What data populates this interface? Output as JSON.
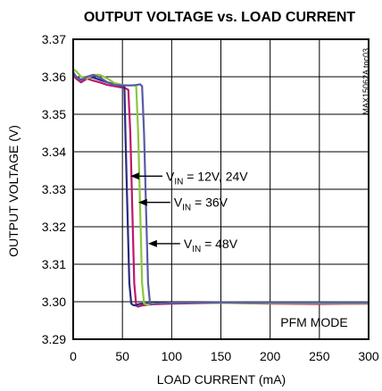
{
  "chart_data": {
    "type": "line",
    "title": "OUTPUT VOLTAGE vs. LOAD CURRENT",
    "xlabel": "LOAD CURRENT (mA)",
    "ylabel": "OUTPUT  VOLTAGE (V)",
    "xlim": [
      0,
      300
    ],
    "ylim": [
      3.29,
      3.37
    ],
    "x_ticks": [
      "0",
      "50",
      "100",
      "150",
      "200",
      "250",
      "300"
    ],
    "y_ticks": [
      "3.29",
      "3.30",
      "3.31",
      "3.32",
      "3.33",
      "3.34",
      "3.35",
      "3.36",
      "3.37"
    ],
    "x_tick_values": [
      0,
      50,
      100,
      150,
      200,
      250,
      300
    ],
    "y_tick_values": [
      3.29,
      3.3,
      3.31,
      3.32,
      3.33,
      3.34,
      3.35,
      3.36,
      3.37
    ],
    "grid": true,
    "corner_code": "MAX15062A toc03",
    "mode_label": "PFM MODE",
    "series": [
      {
        "color": "#c0176a",
        "x": [
          0,
          3,
          8,
          14,
          20,
          27,
          35,
          42,
          48,
          52,
          54,
          56,
          58,
          60,
          62,
          64,
          66,
          70,
          80,
          100,
          150,
          200,
          250,
          300
        ],
        "y": [
          3.3605,
          3.3595,
          3.3585,
          3.3595,
          3.359,
          3.3585,
          3.3578,
          3.3575,
          3.3572,
          3.357,
          3.3568,
          3.3565,
          3.345,
          3.325,
          3.305,
          3.299,
          3.2987,
          3.299,
          3.2993,
          3.2995,
          3.2997,
          3.2995,
          3.2994,
          3.2995
        ]
      },
      {
        "color": "#2a2a80",
        "x": [
          0,
          3,
          8,
          14,
          20,
          27,
          35,
          42,
          48,
          50,
          52,
          53,
          55,
          57,
          59,
          61,
          63,
          65,
          67,
          70,
          80,
          100,
          150,
          200,
          250,
          300
        ],
        "y": [
          3.3612,
          3.36,
          3.3592,
          3.36,
          3.3598,
          3.3592,
          3.3585,
          3.358,
          3.3576,
          3.3575,
          3.3574,
          3.345,
          3.325,
          3.305,
          3.2995,
          3.2991,
          3.299,
          3.2992,
          3.2994,
          3.2995,
          3.2996,
          3.2997,
          3.2998,
          3.2997,
          3.2996,
          3.2996
        ]
      },
      {
        "color": "#8cc63e",
        "x": [
          0,
          3,
          8,
          14,
          20,
          27,
          35,
          42,
          50,
          58,
          62,
          64,
          66,
          68,
          70,
          72,
          75,
          80,
          90,
          100,
          150,
          200,
          250,
          300
        ],
        "y": [
          3.362,
          3.3615,
          3.36,
          3.3595,
          3.3605,
          3.3605,
          3.3595,
          3.3583,
          3.3578,
          3.3577,
          3.3577,
          3.3575,
          3.345,
          3.325,
          3.305,
          3.2995,
          3.2992,
          3.2995,
          3.2996,
          3.2997,
          3.2997,
          3.2996,
          3.2996,
          3.2996
        ]
      },
      {
        "color": "#5a5aa6",
        "x": [
          0,
          3,
          8,
          14,
          20,
          27,
          35,
          42,
          50,
          58,
          64,
          68,
          70,
          72,
          74,
          76,
          78,
          80,
          84,
          90,
          100,
          150,
          200,
          250,
          300
        ],
        "y": [
          3.361,
          3.36,
          3.359,
          3.36,
          3.3605,
          3.3598,
          3.3585,
          3.3578,
          3.3577,
          3.3577,
          3.3578,
          3.358,
          3.3575,
          3.345,
          3.325,
          3.305,
          3.2995,
          3.2993,
          3.2995,
          3.2996,
          3.2997,
          3.2998,
          3.2998,
          3.2998,
          3.2998
        ]
      }
    ],
    "annotations": [
      {
        "text_main": "V",
        "text_sub": "IN",
        "text_rest": " = 12V, 24V",
        "arrow_tip": [
          58,
          3.3335
        ]
      },
      {
        "text_main": "V",
        "text_sub": "IN",
        "text_rest": " = 36V",
        "arrow_tip": [
          66,
          3.3265
        ]
      },
      {
        "text_main": "V",
        "text_sub": "IN",
        "text_rest": " = 48V",
        "arrow_tip": [
          76,
          3.3155
        ]
      }
    ]
  }
}
